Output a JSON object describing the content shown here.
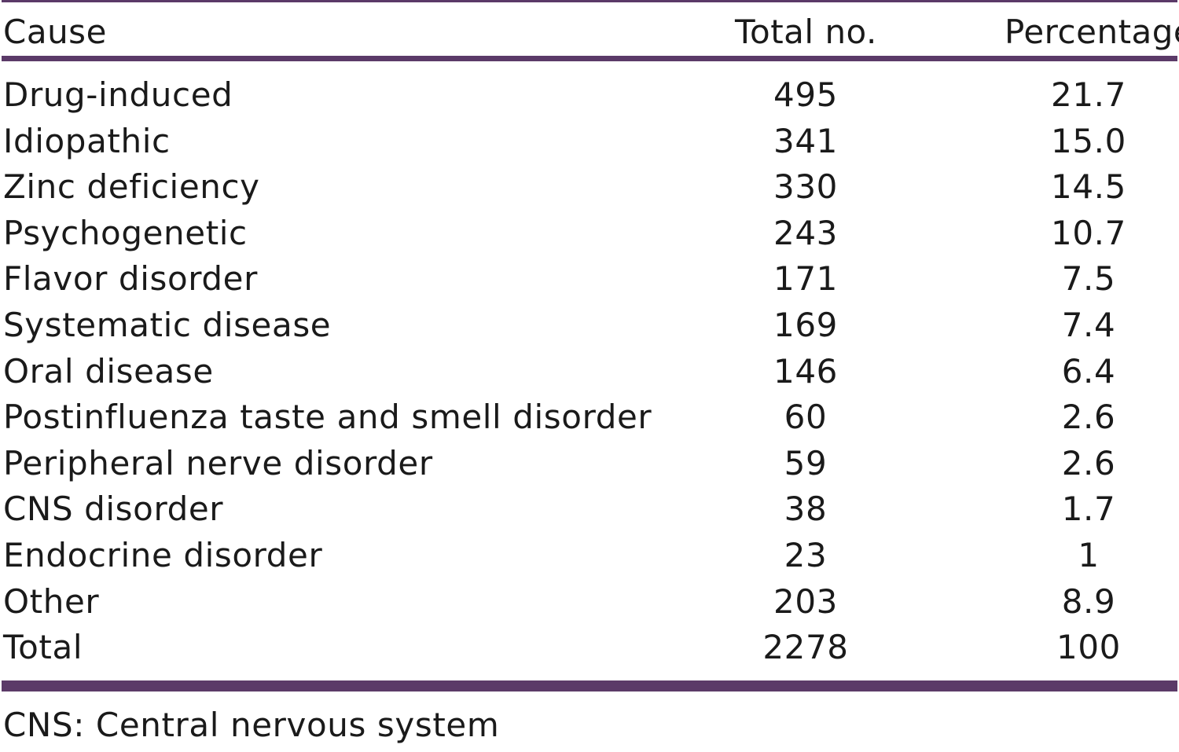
{
  "table": {
    "headers": {
      "cause": "Cause",
      "total": "Total no.",
      "percentage": "Percentage"
    },
    "rows": [
      {
        "cause": "Drug-induced",
        "total": "495",
        "percentage": "21.7"
      },
      {
        "cause": "Idiopathic",
        "total": "341",
        "percentage": "15.0"
      },
      {
        "cause": "Zinc deficiency",
        "total": "330",
        "percentage": "14.5"
      },
      {
        "cause": "Psychogenetic",
        "total": "243",
        "percentage": "10.7"
      },
      {
        "cause": "Flavor disorder",
        "total": "171",
        "percentage": "7.5"
      },
      {
        "cause": "Systematic disease",
        "total": "169",
        "percentage": "7.4"
      },
      {
        "cause": "Oral disease",
        "total": "146",
        "percentage": "6.4"
      },
      {
        "cause": "Postinfluenza taste and smell disorder",
        "total": "60",
        "percentage": "2.6"
      },
      {
        "cause": "Peripheral nerve disorder",
        "total": "59",
        "percentage": "2.6"
      },
      {
        "cause": "CNS disorder",
        "total": "38",
        "percentage": "1.7"
      },
      {
        "cause": "Endocrine disorder",
        "total": "23",
        "percentage": "1"
      },
      {
        "cause": "Other",
        "total": "203",
        "percentage": "8.9"
      },
      {
        "cause": "Total",
        "total": "2278",
        "percentage": "100"
      }
    ],
    "footnote": "CNS: Central nervous system"
  },
  "colors": {
    "rule": "#5b3a68",
    "text": "#1a1a1a",
    "background": "#ffffff"
  }
}
